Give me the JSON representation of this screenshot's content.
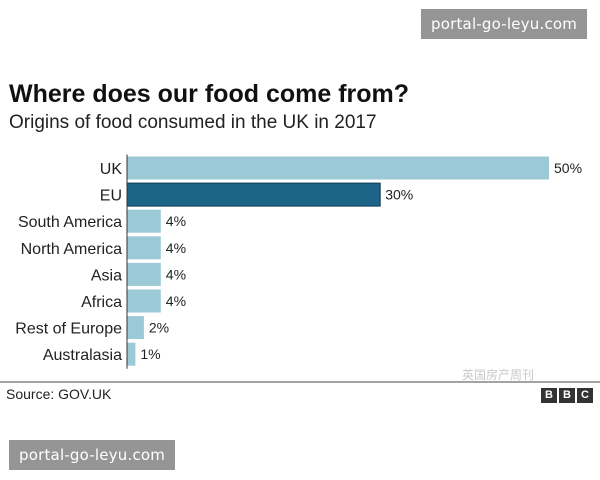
{
  "watermark": {
    "top": "portal-go-leyu.com",
    "bottom": "portal-go-leyu.com",
    "weixin": "英国房产周刊"
  },
  "source": "Source: GOV.UK",
  "logo": {
    "letters": [
      "B",
      "B",
      "C"
    ]
  },
  "colors": {
    "bar_default": "#9bc9d6",
    "bar_highlight": "#1c6588",
    "axis": "#333333"
  },
  "chart_data": {
    "type": "bar",
    "orientation": "horizontal",
    "title": "Where does our food come from?",
    "subtitle": "Origins of food consumed in the UK in 2017",
    "categories": [
      "UK",
      "EU",
      "South America",
      "North America",
      "Asia",
      "Africa",
      "Rest of Europe",
      "Australasia"
    ],
    "values": [
      50,
      30,
      4,
      4,
      4,
      4,
      2,
      1
    ],
    "value_labels": [
      "50%",
      "30%",
      "4%",
      "4%",
      "4%",
      "4%",
      "2%",
      "1%"
    ],
    "highlight": "EU",
    "xlim": [
      0,
      50
    ],
    "grid": false
  }
}
